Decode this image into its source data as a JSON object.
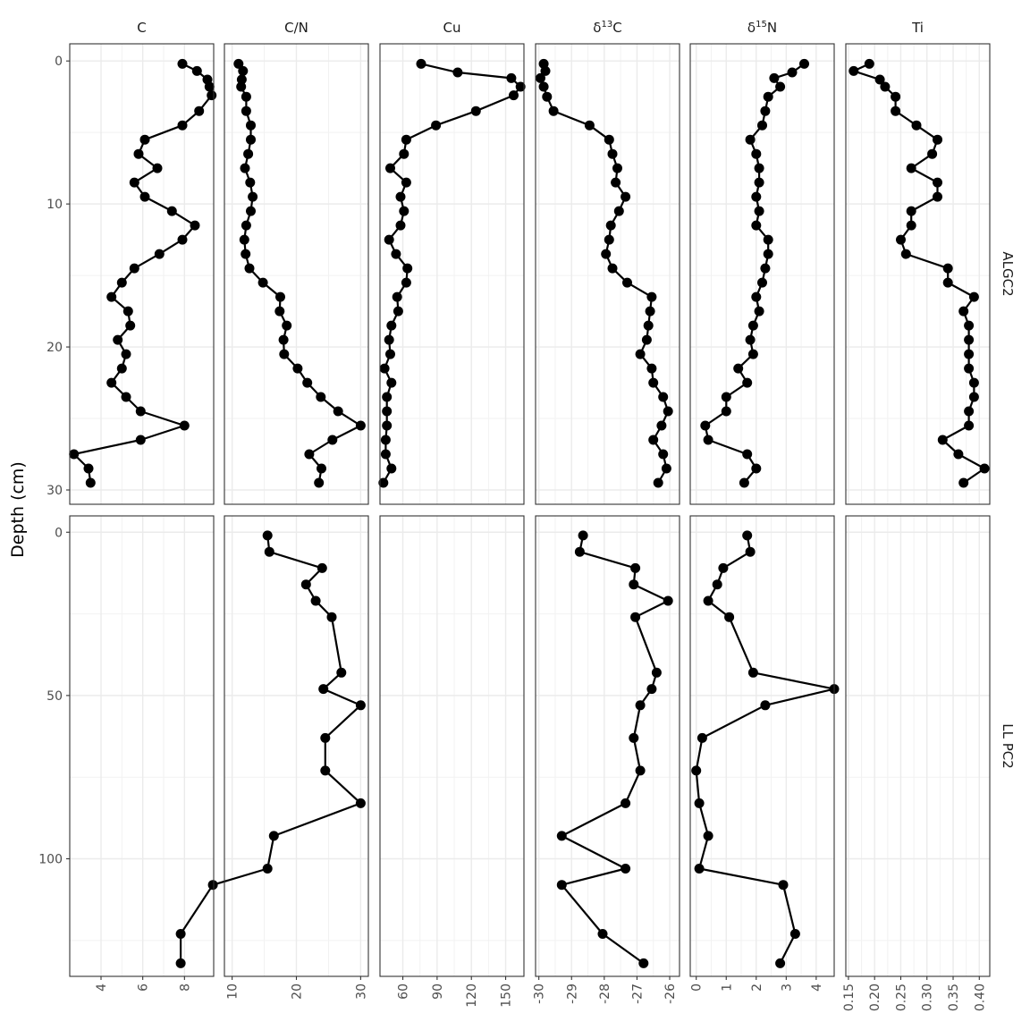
{
  "chart_data": {
    "type": "line",
    "ylabel": "Depth (cm)",
    "y_reversed": true,
    "grid": true,
    "variables": [
      "C",
      "C/N",
      "Cu",
      "δ13C",
      "δ15N",
      "Ti"
    ],
    "variable_labels": {
      "C": {
        "main": "C"
      },
      "C/N": {
        "main": "C/N"
      },
      "Cu": {
        "main": "Cu"
      },
      "δ13C": {
        "prefix": "δ",
        "sup": "13",
        "main": "C"
      },
      "δ15N": {
        "prefix": "δ",
        "sup": "15",
        "main": "N"
      },
      "Ti": {
        "main": "Ti"
      }
    },
    "x_axes": {
      "C": {
        "ticks": [
          "4",
          "6",
          "8"
        ],
        "ticks_values": [
          4,
          6,
          8
        ],
        "xlim": [
          2.5,
          9.4
        ]
      },
      "C/N": {
        "ticks": [
          "10",
          "20",
          "30"
        ],
        "ticks_values": [
          10,
          20,
          30
        ],
        "xlim": [
          8.8,
          31.2
        ]
      },
      "Cu": {
        "ticks": [
          "60",
          "90",
          "120",
          "150"
        ],
        "ticks_values": [
          60,
          90,
          120,
          150
        ],
        "xlim": [
          40,
          166
        ]
      },
      "δ13C": {
        "ticks": [
          "-30",
          "-29",
          "-28",
          "-27",
          "-26"
        ],
        "ticks_values": [
          -30,
          -29,
          -28,
          -27,
          -26
        ],
        "xlim": [
          -30.1,
          -25.7
        ]
      },
      "δ15N": {
        "ticks": [
          "0",
          "1",
          "2",
          "3",
          "4"
        ],
        "ticks_values": [
          0,
          1,
          2,
          3,
          4
        ],
        "xlim": [
          -0.2,
          4.6
        ]
      },
      "Ti": {
        "ticks": [
          "0.15",
          "0.20",
          "0.25",
          "0.30",
          "0.35",
          "0.40"
        ],
        "ticks_values": [
          0.15,
          0.2,
          0.25,
          0.3,
          0.35,
          0.4
        ],
        "xlim": [
          0.145,
          0.42
        ]
      }
    },
    "cores": [
      {
        "name": "ALGC2",
        "ylim": [
          -1.2,
          31
        ],
        "y_ticks": [
          "0",
          "10",
          "20",
          "30"
        ],
        "y_ticks_values": [
          0,
          10,
          20,
          30
        ],
        "series": {
          "C": [
            [
              7.9,
              0.2
            ],
            [
              8.6,
              0.7
            ],
            [
              9.1,
              1.3
            ],
            [
              9.2,
              1.8
            ],
            [
              9.3,
              2.4
            ],
            [
              8.7,
              3.5
            ],
            [
              7.9,
              4.5
            ],
            [
              6.1,
              5.5
            ],
            [
              5.8,
              6.5
            ],
            [
              6.7,
              7.5
            ],
            [
              5.6,
              8.5
            ],
            [
              6.1,
              9.5
            ],
            [
              7.4,
              10.5
            ],
            [
              8.5,
              11.5
            ],
            [
              7.9,
              12.5
            ],
            [
              6.8,
              13.5
            ],
            [
              5.6,
              14.5
            ],
            [
              5.0,
              15.5
            ],
            [
              4.5,
              16.5
            ],
            [
              5.3,
              17.5
            ],
            [
              5.4,
              18.5
            ],
            [
              4.8,
              19.5
            ],
            [
              5.2,
              20.5
            ],
            [
              5.0,
              21.5
            ],
            [
              4.5,
              22.5
            ],
            [
              5.2,
              23.5
            ],
            [
              5.9,
              24.5
            ],
            [
              8.0,
              25.5
            ],
            [
              5.9,
              26.5
            ],
            [
              2.7,
              27.5
            ],
            [
              3.4,
              28.5
            ],
            [
              3.5,
              29.5
            ]
          ],
          "C/N": [
            [
              11.0,
              0.2
            ],
            [
              11.7,
              0.7
            ],
            [
              11.5,
              1.3
            ],
            [
              11.4,
              1.8
            ],
            [
              12.2,
              2.5
            ],
            [
              12.2,
              3.5
            ],
            [
              12.9,
              4.5
            ],
            [
              12.9,
              5.5
            ],
            [
              12.5,
              6.5
            ],
            [
              12.0,
              7.5
            ],
            [
              12.8,
              8.5
            ],
            [
              13.2,
              9.5
            ],
            [
              12.9,
              10.5
            ],
            [
              12.2,
              11.5
            ],
            [
              11.9,
              12.5
            ],
            [
              12.1,
              13.5
            ],
            [
              12.7,
              14.5
            ],
            [
              14.8,
              15.5
            ],
            [
              17.5,
              16.5
            ],
            [
              17.4,
              17.5
            ],
            [
              18.5,
              18.5
            ],
            [
              18.0,
              19.5
            ],
            [
              18.1,
              20.5
            ],
            [
              20.2,
              21.5
            ],
            [
              21.7,
              22.5
            ],
            [
              23.8,
              23.5
            ],
            [
              26.5,
              24.5
            ],
            [
              30.0,
              25.5
            ],
            [
              25.6,
              26.5
            ],
            [
              22.0,
              27.5
            ],
            [
              23.9,
              28.5
            ],
            [
              23.5,
              29.5
            ]
          ],
          "Cu": [
            [
              76,
              0.2
            ],
            [
              108,
              0.8
            ],
            [
              155,
              1.2
            ],
            [
              163,
              1.8
            ],
            [
              157,
              2.4
            ],
            [
              124,
              3.5
            ],
            [
              89,
              4.5
            ],
            [
              63,
              5.5
            ],
            [
              61,
              6.5
            ],
            [
              49,
              7.5
            ],
            [
              63,
              8.5
            ],
            [
              58,
              9.5
            ],
            [
              61,
              10.5
            ],
            [
              58,
              11.5
            ],
            [
              48,
              12.5
            ],
            [
              54,
              13.5
            ],
            [
              64,
              14.5
            ],
            [
              63,
              15.5
            ],
            [
              55,
              16.5
            ],
            [
              56,
              17.5
            ],
            [
              50,
              18.5
            ],
            [
              48,
              19.5
            ],
            [
              49,
              20.5
            ],
            [
              44,
              21.5
            ],
            [
              50,
              22.5
            ],
            [
              46,
              23.5
            ],
            [
              46,
              24.5
            ],
            [
              46,
              25.5
            ],
            [
              45,
              26.5
            ],
            [
              45,
              27.5
            ],
            [
              50,
              28.5
            ],
            [
              43,
              29.5
            ]
          ],
          "δ13C": [
            [
              -29.85,
              0.2
            ],
            [
              -29.8,
              0.7
            ],
            [
              -29.95,
              1.2
            ],
            [
              -29.85,
              1.8
            ],
            [
              -29.75,
              2.5
            ],
            [
              -29.55,
              3.5
            ],
            [
              -28.45,
              4.5
            ],
            [
              -27.85,
              5.5
            ],
            [
              -27.75,
              6.5
            ],
            [
              -27.6,
              7.5
            ],
            [
              -27.65,
              8.5
            ],
            [
              -27.35,
              9.5
            ],
            [
              -27.55,
              10.5
            ],
            [
              -27.8,
              11.5
            ],
            [
              -27.85,
              12.5
            ],
            [
              -27.95,
              13.5
            ],
            [
              -27.75,
              14.5
            ],
            [
              -27.3,
              15.5
            ],
            [
              -26.55,
              16.5
            ],
            [
              -26.6,
              17.5
            ],
            [
              -26.65,
              18.5
            ],
            [
              -26.7,
              19.5
            ],
            [
              -26.9,
              20.5
            ],
            [
              -26.55,
              21.5
            ],
            [
              -26.5,
              22.5
            ],
            [
              -26.2,
              23.5
            ],
            [
              -26.05,
              24.5
            ],
            [
              -26.25,
              25.5
            ],
            [
              -26.5,
              26.5
            ],
            [
              -26.2,
              27.5
            ],
            [
              -26.1,
              28.5
            ],
            [
              -26.35,
              29.5
            ]
          ],
          "δ15N": [
            [
              3.6,
              0.2
            ],
            [
              3.2,
              0.8
            ],
            [
              2.6,
              1.2
            ],
            [
              2.8,
              1.8
            ],
            [
              2.4,
              2.5
            ],
            [
              2.3,
              3.5
            ],
            [
              2.2,
              4.5
            ],
            [
              1.8,
              5.5
            ],
            [
              2.0,
              6.5
            ],
            [
              2.1,
              7.5
            ],
            [
              2.1,
              8.5
            ],
            [
              2.0,
              9.5
            ],
            [
              2.1,
              10.5
            ],
            [
              2.0,
              11.5
            ],
            [
              2.4,
              12.5
            ],
            [
              2.4,
              13.5
            ],
            [
              2.3,
              14.5
            ],
            [
              2.2,
              15.5
            ],
            [
              2.0,
              16.5
            ],
            [
              2.1,
              17.5
            ],
            [
              1.9,
              18.5
            ],
            [
              1.8,
              19.5
            ],
            [
              1.9,
              20.5
            ],
            [
              1.4,
              21.5
            ],
            [
              1.7,
              22.5
            ],
            [
              1.0,
              23.5
            ],
            [
              1.0,
              24.5
            ],
            [
              0.3,
              25.5
            ],
            [
              0.4,
              26.5
            ],
            [
              1.7,
              27.5
            ],
            [
              2.0,
              28.5
            ],
            [
              1.6,
              29.5
            ]
          ],
          "Ti": [
            [
              0.19,
              0.2
            ],
            [
              0.16,
              0.7
            ],
            [
              0.21,
              1.3
            ],
            [
              0.22,
              1.8
            ],
            [
              0.24,
              2.5
            ],
            [
              0.24,
              3.5
            ],
            [
              0.28,
              4.5
            ],
            [
              0.32,
              5.5
            ],
            [
              0.31,
              6.5
            ],
            [
              0.27,
              7.5
            ],
            [
              0.32,
              8.5
            ],
            [
              0.32,
              9.5
            ],
            [
              0.27,
              10.5
            ],
            [
              0.27,
              11.5
            ],
            [
              0.25,
              12.5
            ],
            [
              0.26,
              13.5
            ],
            [
              0.34,
              14.5
            ],
            [
              0.34,
              15.5
            ],
            [
              0.39,
              16.5
            ],
            [
              0.37,
              17.5
            ],
            [
              0.38,
              18.5
            ],
            [
              0.38,
              19.5
            ],
            [
              0.38,
              20.5
            ],
            [
              0.38,
              21.5
            ],
            [
              0.39,
              22.5
            ],
            [
              0.39,
              23.5
            ],
            [
              0.38,
              24.5
            ],
            [
              0.38,
              25.5
            ],
            [
              0.33,
              26.5
            ],
            [
              0.36,
              27.5
            ],
            [
              0.41,
              28.5
            ],
            [
              0.37,
              29.5
            ]
          ]
        }
      },
      {
        "name": "LL PC2",
        "ylim": [
          -5,
          136
        ],
        "y_ticks": [
          "0",
          "50",
          "100"
        ],
        "y_ticks_values": [
          0,
          50,
          100
        ],
        "series": {
          "C": [],
          "C/N": [
            [
              15.5,
              1
            ],
            [
              15.8,
              6
            ],
            [
              24,
              11
            ],
            [
              21.5,
              16
            ],
            [
              23,
              21
            ],
            [
              25.5,
              26
            ],
            [
              27,
              43
            ],
            [
              24.2,
              48
            ],
            [
              30,
              53
            ],
            [
              24.5,
              63
            ],
            [
              24.5,
              73
            ],
            [
              30,
              83
            ],
            [
              16.5,
              93
            ],
            [
              15.5,
              103
            ],
            [
              7,
              108
            ],
            [
              2,
              123
            ],
            [
              2,
              132
            ]
          ],
          "Cu": [],
          "δ13C": [
            [
              -28.65,
              1
            ],
            [
              -28.75,
              6
            ],
            [
              -27.05,
              11
            ],
            [
              -27.1,
              16
            ],
            [
              -26.05,
              21
            ],
            [
              -27.05,
              26
            ],
            [
              -26.4,
              43
            ],
            [
              -26.55,
              48
            ],
            [
              -26.9,
              53
            ],
            [
              -27.1,
              63
            ],
            [
              -26.9,
              73
            ],
            [
              -27.35,
              83
            ],
            [
              -29.3,
              93
            ],
            [
              -27.35,
              103
            ],
            [
              -29.3,
              108
            ],
            [
              -28.05,
              123
            ],
            [
              -26.8,
              132
            ]
          ],
          "δ15N": [
            [
              1.7,
              1
            ],
            [
              1.8,
              6
            ],
            [
              0.9,
              11
            ],
            [
              0.7,
              16
            ],
            [
              0.4,
              21
            ],
            [
              1.1,
              26
            ],
            [
              1.9,
              43
            ],
            [
              4.6,
              48
            ],
            [
              2.3,
              53
            ],
            [
              0.2,
              63
            ],
            [
              0.0,
              73
            ],
            [
              0.1,
              83
            ],
            [
              0.4,
              93
            ],
            [
              0.1,
              103
            ],
            [
              2.9,
              108
            ],
            [
              3.3,
              123
            ],
            [
              2.8,
              132
            ]
          ],
          "Ti": []
        }
      }
    ]
  }
}
